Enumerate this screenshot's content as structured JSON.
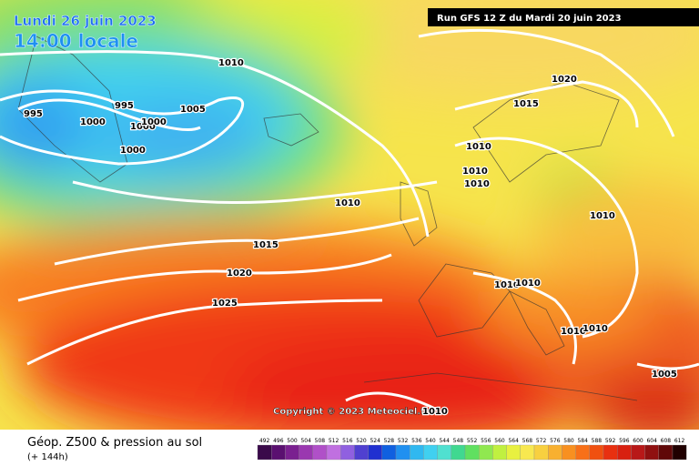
{
  "header": {
    "date": "Lundi 26 juin 2023",
    "time": "14:00 locale",
    "run": "Run GFS 12 Z du Mardi 20 juin 2023"
  },
  "isobar_labels": [
    1010,
    995,
    995,
    1000,
    1000,
    1000,
    1000,
    1005,
    1020,
    1015,
    1010,
    1010,
    1010,
    1010,
    1010,
    1015,
    1020,
    1025,
    1010,
    1010,
    1010,
    1010,
    1005
  ],
  "copyright": "Copyright © 2023 Meteociel.fr",
  "copyright_isobar": 1010,
  "footer": {
    "title": "Géop. Z500 & pression au sol",
    "lead": "(+ 144h)"
  },
  "colorbar": {
    "labels": [
      492,
      496,
      500,
      504,
      508,
      512,
      516,
      520,
      524,
      528,
      532,
      536,
      540,
      544,
      548,
      552,
      556,
      560,
      564,
      568,
      572,
      576,
      580,
      584,
      588,
      592,
      596,
      600,
      604,
      608,
      612
    ],
    "colors": [
      "#3a0a4a",
      "#5a1070",
      "#7a2090",
      "#9a38b0",
      "#b050c8",
      "#c070e0",
      "#9060e0",
      "#5040d0",
      "#2030d0",
      "#1060e0",
      "#2090f0",
      "#30b8f0",
      "#40d0f0",
      "#50e0d0",
      "#40d890",
      "#60e060",
      "#90e850",
      "#c0f040",
      "#e8f040",
      "#f8e850",
      "#f8d040",
      "#f8b030",
      "#f89020",
      "#f87018",
      "#f05010",
      "#e83010",
      "#d82010",
      "#b81818",
      "#901010",
      "#600808",
      "#200000"
    ]
  }
}
